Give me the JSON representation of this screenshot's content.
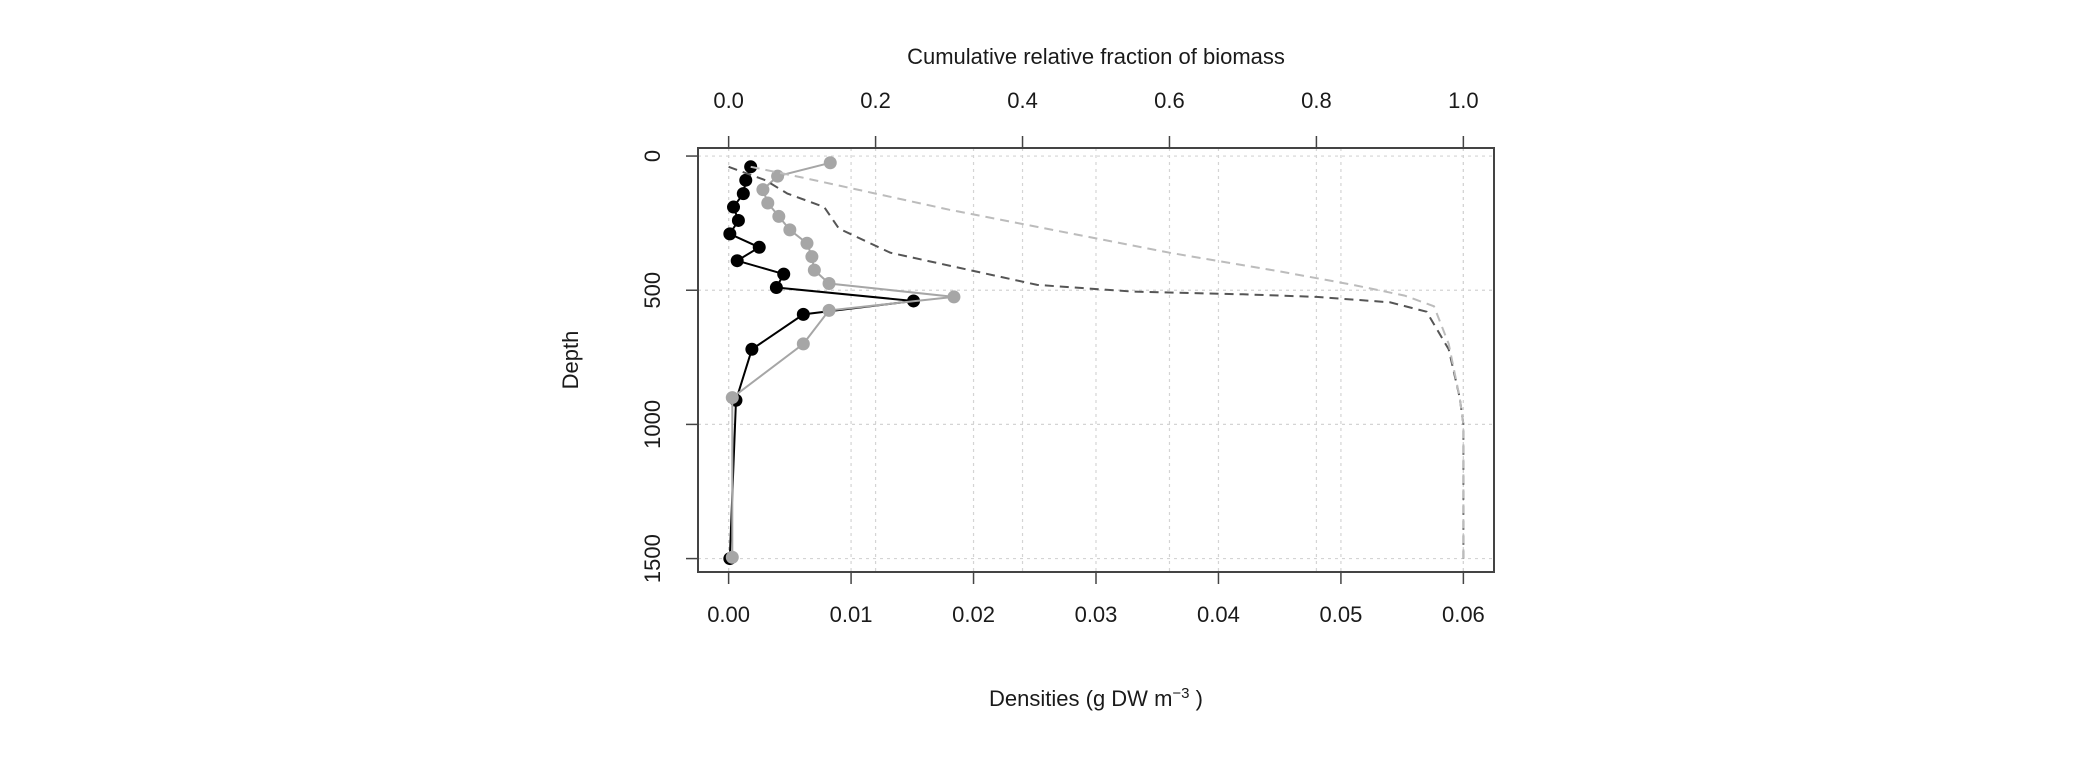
{
  "chart_data": {
    "type": "line",
    "top_axis_label": "Cumulative relative fraction of biomass",
    "ylabel": "Depth",
    "xlabel_prefix": "Densities (g DW  m",
    "xlabel_sup": "−3",
    "xlabel_suffix": " )",
    "x_range": [
      -0.0025,
      0.0625
    ],
    "x2_range": [
      -0.0417,
      1.0417
    ],
    "y_range": [
      1550,
      -30
    ],
    "y_reversed": true,
    "grid": true,
    "x_ticks": [
      "0.00",
      "0.01",
      "0.02",
      "0.03",
      "0.04",
      "0.05",
      "0.06"
    ],
    "x_tick_values": [
      0,
      0.01,
      0.02,
      0.03,
      0.04,
      0.05,
      0.06
    ],
    "x2_ticks": [
      "0.0",
      "0.2",
      "0.4",
      "0.6",
      "0.8",
      "1.0"
    ],
    "x2_tick_values": [
      0,
      0.2,
      0.4,
      0.6,
      0.8,
      1.0
    ],
    "y_ticks": [
      "0",
      "500",
      "1000",
      "1500"
    ],
    "y_tick_values": [
      0,
      500,
      1000,
      1500
    ],
    "series": [
      {
        "style": "points-line",
        "color": "#000000",
        "axis": "bottom",
        "x": [
          0.0018,
          0.0014,
          0.0012,
          0.0004,
          0.0008,
          0.0001,
          0.0025,
          0.0007,
          0.0045,
          0.0039,
          0.0151,
          0.0061,
          0.0019,
          0.0006,
          0.0001
        ],
        "y": [
          40,
          90,
          140,
          190,
          240,
          290,
          340,
          390,
          440,
          490,
          540,
          590,
          720,
          910,
          1500
        ]
      },
      {
        "style": "points-line",
        "color": "#a6a6a6",
        "axis": "bottom",
        "x": [
          0.0083,
          0.004,
          0.0028,
          0.0032,
          0.0041,
          0.005,
          0.0064,
          0.0068,
          0.007,
          0.0082,
          0.0184,
          0.0082,
          0.0061,
          0.0003,
          0.0003
        ],
        "y": [
          25,
          75,
          125,
          175,
          225,
          275,
          325,
          375,
          425,
          475,
          525,
          575,
          700,
          900,
          1495
        ]
      },
      {
        "style": "dashed",
        "color": "#555555",
        "axis": "top",
        "x": [
          0.0,
          0.05,
          0.08,
          0.13,
          0.15,
          0.22,
          0.42,
          0.55,
          0.7,
          0.8,
          0.9,
          0.95,
          0.98,
          0.995,
          1.0,
          1.0
        ],
        "y": [
          40,
          90,
          140,
          190,
          270,
          360,
          480,
          505,
          515,
          525,
          545,
          580,
          720,
          900,
          1000,
          1500
        ]
      },
      {
        "style": "dashed",
        "color": "#bcbcbc",
        "axis": "top",
        "x": [
          0.03,
          0.1,
          0.2,
          0.3,
          0.45,
          0.6,
          0.75,
          0.85,
          0.92,
          0.96,
          0.98,
          0.995,
          1.0,
          1.0
        ],
        "y": [
          40,
          80,
          140,
          200,
          280,
          360,
          430,
          480,
          520,
          560,
          700,
          900,
          1000,
          1500
        ]
      }
    ]
  }
}
